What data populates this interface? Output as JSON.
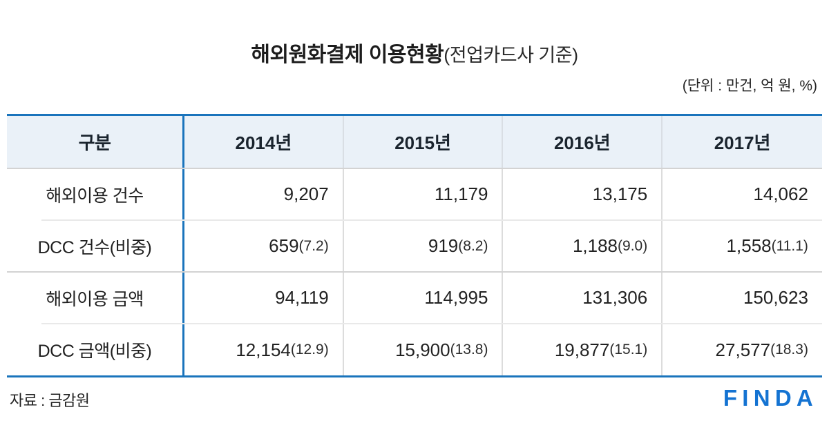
{
  "title": {
    "main": "해외원화결제 이용현황",
    "sub": "(전업카드사 기준)"
  },
  "unit_note": "(단위 : 만건, 억 원, %)",
  "source": "자료 : 금감원",
  "logo_text": "FINDA",
  "colors": {
    "accent_blue": "#1a74bc",
    "logo_blue": "#1473d2",
    "header_bg": "#eaf1f8"
  },
  "chart_data": {
    "type": "table",
    "title": "해외원화결제 이용현황(전업카드사 기준)",
    "unit_note": "(단위 : 만건, 억 원, %)",
    "source": "금감원",
    "columns": [
      "구분",
      "2014년",
      "2015년",
      "2016년",
      "2017년"
    ],
    "rows": [
      {
        "label": "해외이용 건수",
        "cells": [
          {
            "main": "9,207",
            "paren": ""
          },
          {
            "main": "11,179",
            "paren": ""
          },
          {
            "main": "13,175",
            "paren": ""
          },
          {
            "main": "14,062",
            "paren": ""
          }
        ],
        "values": [
          9207,
          11179,
          13175,
          14062
        ]
      },
      {
        "label": "DCC 건수(비중)",
        "cells": [
          {
            "main": "659",
            "paren": "(7.2)"
          },
          {
            "main": "919",
            "paren": "(8.2)"
          },
          {
            "main": "1,188",
            "paren": "(9.0)"
          },
          {
            "main": "1,558",
            "paren": "(11.1)"
          }
        ],
        "values": [
          659,
          919,
          1188,
          1558
        ],
        "shares_pct": [
          7.2,
          8.2,
          9.0,
          11.1
        ]
      },
      {
        "label": "해외이용 금액",
        "cells": [
          {
            "main": "94,119",
            "paren": ""
          },
          {
            "main": "114,995",
            "paren": ""
          },
          {
            "main": "131,306",
            "paren": ""
          },
          {
            "main": "150,623",
            "paren": ""
          }
        ],
        "values": [
          94119,
          114995,
          131306,
          150623
        ]
      },
      {
        "label": "DCC 금액(비중)",
        "cells": [
          {
            "main": "12,154",
            "paren": "(12.9)"
          },
          {
            "main": "15,900",
            "paren": "(13.8)"
          },
          {
            "main": "19,877",
            "paren": "(15.1)"
          },
          {
            "main": "27,577",
            "paren": "(18.3)"
          }
        ],
        "values": [
          12154,
          15900,
          19877,
          27577
        ],
        "shares_pct": [
          12.9,
          13.8,
          15.1,
          18.3
        ]
      }
    ]
  }
}
